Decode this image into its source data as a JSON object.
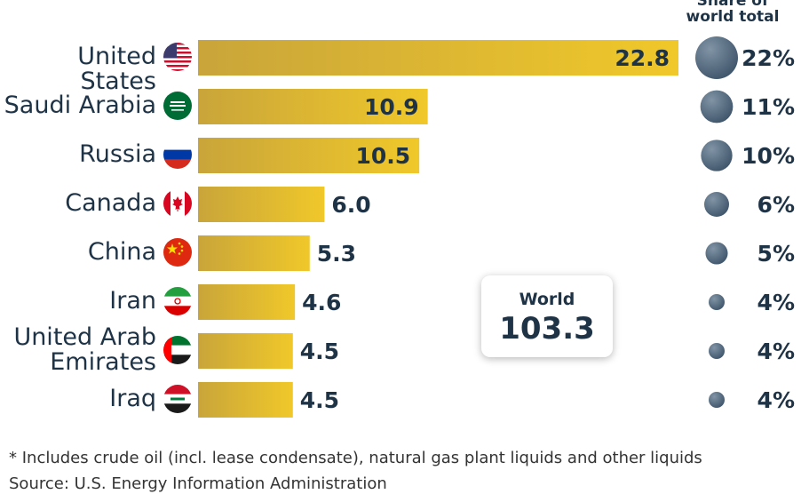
{
  "chart_data": {
    "type": "bar",
    "orientation": "horizontal",
    "title": "",
    "xlabel": "",
    "ylabel": "",
    "xlim": [
      0,
      22.8
    ],
    "grid": false,
    "legend": "none",
    "categories": [
      "United States",
      "Saudi Arabia",
      "Russia",
      "Canada",
      "China",
      "Iran",
      "United Arab Emirates",
      "Iraq"
    ],
    "values": [
      22.8,
      10.9,
      10.5,
      6.0,
      5.3,
      4.6,
      4.5,
      4.5
    ],
    "value_labels": [
      "22.8",
      "10.9",
      "10.5",
      "6.0",
      "5.3",
      "4.6",
      "4.5",
      "4.5"
    ],
    "share_header": "Share of world total",
    "shares": [
      22,
      11,
      10,
      6,
      5,
      4,
      4,
      4
    ],
    "share_labels": [
      "22%",
      "11%",
      "10%",
      "6%",
      "5%",
      "4%",
      "4%",
      "4%"
    ],
    "world_total": {
      "label": "World",
      "value": "103.3"
    },
    "colors": {
      "bar_light": "#c9a53a",
      "bar_dark": "#f0c82a",
      "bubble": "#5c7185",
      "text": "#1f3347"
    }
  },
  "flags": [
    {
      "icon": "us-flag-icon"
    },
    {
      "icon": "saudi-arabia-flag-icon"
    },
    {
      "icon": "russia-flag-icon"
    },
    {
      "icon": "canada-flag-icon"
    },
    {
      "icon": "china-flag-icon"
    },
    {
      "icon": "iran-flag-icon"
    },
    {
      "icon": "uae-flag-icon"
    },
    {
      "icon": "iraq-flag-icon"
    }
  ],
  "footnote": "* Includes crude oil (incl. lease condensate), natural gas plant liquids and other liquids",
  "source": "Source: U.S. Energy Information Administration"
}
